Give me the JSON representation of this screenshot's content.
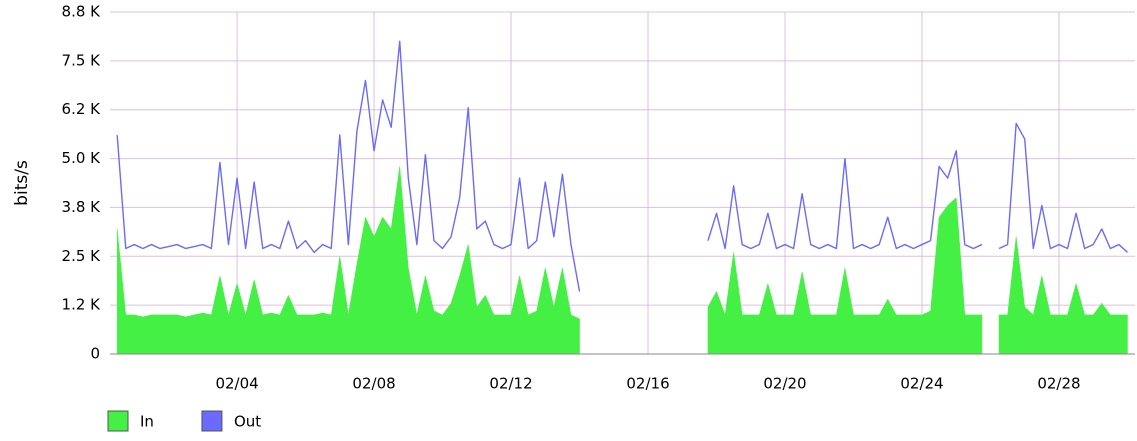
{
  "chart_data": {
    "type": "area",
    "y_label": "bits/s",
    "xlim": [
      0.29,
      30.22
    ],
    "xticks": [
      {
        "value": 4,
        "label": "02/04"
      },
      {
        "value": 8,
        "label": "02/08"
      },
      {
        "value": 12,
        "label": "02/12"
      },
      {
        "value": 16,
        "label": "02/16"
      },
      {
        "value": 20,
        "label": "02/20"
      },
      {
        "value": 24,
        "label": "02/24"
      },
      {
        "value": 28,
        "label": "02/28"
      }
    ],
    "ylim": [
      0,
      8750
    ],
    "yticks": [
      0,
      {
        "value": 1250,
        "label": "1.2 K"
      },
      {
        "value": 2500,
        "label": "2.5 K"
      },
      {
        "value": 3750,
        "label": "3.8 K"
      },
      {
        "value": 5000,
        "label": "5.0 K"
      },
      {
        "value": 6250,
        "label": "6.2 K"
      },
      {
        "value": 7500,
        "label": "7.5 K"
      },
      {
        "value": 8750,
        "label": "8.8 K"
      }
    ],
    "grid": true,
    "legend": "bottom-left",
    "x": [
      0.5,
      0.75,
      1,
      1.25,
      1.5,
      1.75,
      2,
      2.25,
      2.5,
      2.75,
      3,
      3.25,
      3.5,
      3.75,
      4,
      4.25,
      4.5,
      4.75,
      5,
      5.25,
      5.5,
      5.75,
      6,
      6.25,
      6.5,
      6.75,
      7,
      7.25,
      7.5,
      7.75,
      8,
      8.25,
      8.5,
      8.75,
      9,
      9.25,
      9.5,
      9.75,
      10,
      10.25,
      10.5,
      10.75,
      11,
      11.25,
      11.5,
      11.75,
      12,
      12.25,
      12.5,
      12.75,
      13,
      13.25,
      13.5,
      13.75,
      14,
      14.25,
      14.5,
      14.75,
      15,
      15.25,
      15.5,
      15.75,
      16,
      16.25,
      16.5,
      16.75,
      17,
      17.25,
      17.5,
      17.75,
      18,
      18.25,
      18.5,
      18.75,
      19,
      19.25,
      19.5,
      19.75,
      20,
      20.25,
      20.5,
      20.75,
      21,
      21.25,
      21.5,
      21.75,
      22,
      22.25,
      22.5,
      22.75,
      23,
      23.25,
      23.5,
      23.75,
      24,
      24.25,
      24.5,
      24.75,
      25,
      25.25,
      25.5,
      25.75,
      26,
      26.25,
      26.5,
      26.75,
      27,
      27.25,
      27.5,
      27.75,
      28,
      28.25,
      28.5,
      28.75,
      29,
      29.25,
      29.5,
      29.75,
      30
    ],
    "series": [
      {
        "name": "In",
        "color": "#44f044",
        "style": "area",
        "values": [
          3200,
          1000,
          1000,
          950,
          1000,
          1000,
          1000,
          1000,
          950,
          1000,
          1050,
          1000,
          2000,
          1000,
          1800,
          1000,
          1900,
          1000,
          1050,
          1000,
          1500,
          1000,
          1000,
          1000,
          1050,
          1000,
          2500,
          1000,
          2300,
          3500,
          3000,
          3500,
          3200,
          4800,
          2200,
          1000,
          2000,
          1100,
          1000,
          1300,
          2000,
          2800,
          1200,
          1500,
          1000,
          1000,
          1000,
          2000,
          1000,
          1100,
          2200,
          1200,
          2200,
          1000,
          900,
          null,
          null,
          null,
          null,
          null,
          null,
          null,
          null,
          null,
          null,
          null,
          null,
          null,
          null,
          1200,
          1600,
          1000,
          2600,
          1000,
          1000,
          1000,
          1800,
          1000,
          1000,
          1000,
          2100,
          1000,
          1000,
          1000,
          1000,
          2200,
          1000,
          1000,
          1000,
          1000,
          1400,
          1000,
          1000,
          1000,
          1000,
          1100,
          3500,
          3800,
          4000,
          1000,
          1000,
          1000,
          null,
          1000,
          1000,
          3000,
          1200,
          1000,
          2000,
          1000,
          1000,
          1000,
          1800,
          1000,
          1000,
          1300,
          1000,
          1000,
          1000
        ]
      },
      {
        "name": "Out",
        "color": "#6a6aff",
        "style": "line",
        "values": [
          5600,
          2700,
          2800,
          2700,
          2800,
          2700,
          2750,
          2800,
          2700,
          2750,
          2800,
          2700,
          4900,
          2800,
          4500,
          2700,
          4400,
          2700,
          2800,
          2700,
          3400,
          2700,
          2900,
          2600,
          2800,
          2700,
          5600,
          2800,
          5700,
          7000,
          5200,
          6500,
          5800,
          8000,
          4500,
          2800,
          5100,
          2900,
          2700,
          3000,
          4000,
          6300,
          3200,
          3400,
          2800,
          2700,
          2800,
          4500,
          2700,
          2900,
          4400,
          3000,
          4600,
          2800,
          1600,
          null,
          null,
          null,
          null,
          null,
          null,
          null,
          null,
          null,
          null,
          null,
          null,
          null,
          null,
          2900,
          3600,
          2700,
          4300,
          2800,
          2700,
          2800,
          3600,
          2700,
          2800,
          2700,
          4100,
          2800,
          2700,
          2800,
          2700,
          5000,
          2700,
          2800,
          2700,
          2800,
          3500,
          2700,
          2800,
          2700,
          2800,
          2900,
          4800,
          4500,
          5200,
          2800,
          2700,
          2800,
          null,
          2700,
          2800,
          5900,
          5500,
          2700,
          3800,
          2700,
          2800,
          2700,
          3600,
          2700,
          2800,
          3200,
          2700,
          2800,
          2600
        ]
      }
    ]
  }
}
